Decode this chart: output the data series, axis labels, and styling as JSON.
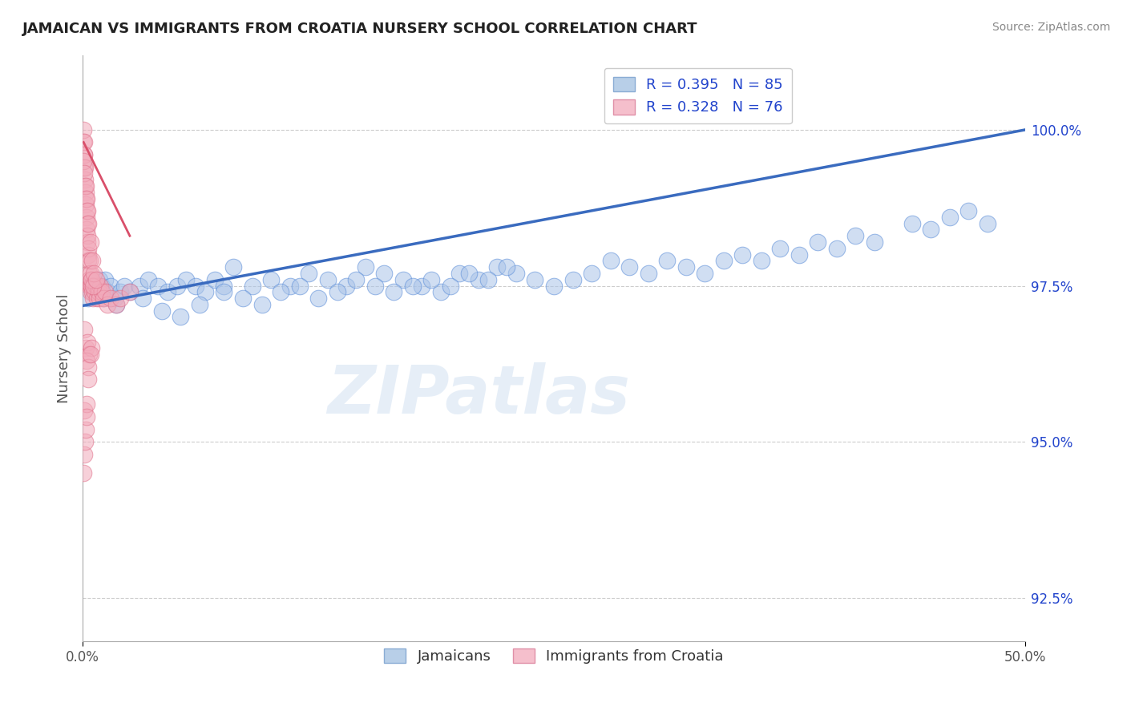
{
  "title": "JAMAICAN VS IMMIGRANTS FROM CROATIA NURSERY SCHOOL CORRELATION CHART",
  "source": "Source: ZipAtlas.com",
  "ylabel": "Nursery School",
  "xlim": [
    0.0,
    50.0
  ],
  "ylim": [
    91.8,
    101.2
  ],
  "yticks": [
    92.5,
    95.0,
    97.5,
    100.0
  ],
  "ytick_labels": [
    "92.5%",
    "95.0%",
    "97.5%",
    "100.0%"
  ],
  "blue_color": "#aac4e8",
  "blue_edge_color": "#5b8dd9",
  "blue_line_color": "#3a6bbf",
  "pink_color": "#f2aabb",
  "pink_edge_color": "#e0708a",
  "pink_line_color": "#d94f6a",
  "legend_label_jamaicans": "Jamaicans",
  "legend_label_croatia": "Immigrants from Croatia",
  "legend_text_color": "#2244cc",
  "watermark_text": "ZIPatlas",
  "background_color": "#ffffff",
  "grid_color": "#cccccc",
  "title_color": "#222222",
  "blue_scatter_x": [
    0.3,
    0.5,
    0.7,
    0.9,
    1.0,
    1.1,
    1.2,
    1.3,
    1.5,
    1.7,
    2.0,
    2.2,
    2.5,
    3.0,
    3.5,
    4.0,
    4.5,
    5.0,
    5.5,
    6.0,
    6.5,
    7.0,
    7.5,
    8.0,
    9.0,
    10.0,
    11.0,
    12.0,
    13.0,
    14.0,
    15.0,
    16.0,
    17.0,
    18.0,
    19.0,
    20.0,
    21.0,
    22.0,
    23.0,
    24.0,
    25.0,
    26.0,
    27.0,
    28.0,
    29.0,
    30.0,
    31.0,
    32.0,
    33.0,
    34.0,
    35.0,
    36.0,
    37.0,
    38.0,
    39.0,
    40.0,
    41.0,
    42.0,
    44.0,
    45.0,
    46.0,
    47.0,
    48.0,
    1.8,
    3.2,
    4.2,
    5.2,
    6.2,
    7.5,
    8.5,
    9.5,
    10.5,
    11.5,
    12.5,
    13.5,
    14.5,
    15.5,
    16.5,
    17.5,
    18.5,
    19.5,
    20.5,
    21.5,
    22.5
  ],
  "blue_scatter_y": [
    97.3,
    97.5,
    97.4,
    97.6,
    97.5,
    97.3,
    97.6,
    97.4,
    97.5,
    97.3,
    97.4,
    97.5,
    97.4,
    97.5,
    97.6,
    97.5,
    97.4,
    97.5,
    97.6,
    97.5,
    97.4,
    97.6,
    97.5,
    97.8,
    97.5,
    97.6,
    97.5,
    97.7,
    97.6,
    97.5,
    97.8,
    97.7,
    97.6,
    97.5,
    97.4,
    97.7,
    97.6,
    97.8,
    97.7,
    97.6,
    97.5,
    97.6,
    97.7,
    97.9,
    97.8,
    97.7,
    97.9,
    97.8,
    97.7,
    97.9,
    98.0,
    97.9,
    98.1,
    98.0,
    98.2,
    98.1,
    98.3,
    98.2,
    98.5,
    98.4,
    98.6,
    98.7,
    98.5,
    97.2,
    97.3,
    97.1,
    97.0,
    97.2,
    97.4,
    97.3,
    97.2,
    97.4,
    97.5,
    97.3,
    97.4,
    97.6,
    97.5,
    97.4,
    97.5,
    97.6,
    97.5,
    97.7,
    97.6,
    97.8
  ],
  "pink_scatter_x": [
    0.05,
    0.08,
    0.1,
    0.12,
    0.15,
    0.18,
    0.2,
    0.22,
    0.25,
    0.28,
    0.3,
    0.33,
    0.35,
    0.38,
    0.4,
    0.42,
    0.45,
    0.48,
    0.5,
    0.55,
    0.6,
    0.65,
    0.7,
    0.75,
    0.8,
    0.85,
    0.9,
    0.95,
    1.0,
    1.1,
    1.2,
    1.3,
    1.5,
    1.8,
    2.0,
    2.5,
    0.05,
    0.07,
    0.09,
    0.11,
    0.14,
    0.17,
    0.19,
    0.23,
    0.27,
    0.31,
    0.36,
    0.43,
    0.47,
    0.53,
    0.05,
    0.1,
    0.15,
    0.2,
    0.25,
    0.3,
    0.4,
    0.5,
    0.6,
    0.7,
    0.1,
    0.15,
    0.25,
    0.35,
    0.45,
    0.2,
    0.3,
    0.4,
    0.1,
    0.2,
    0.3,
    0.05,
    0.08,
    0.12,
    0.18,
    0.22
  ],
  "pink_scatter_y": [
    99.8,
    99.6,
    99.4,
    99.2,
    99.0,
    98.8,
    98.6,
    98.4,
    98.2,
    98.0,
    97.9,
    97.7,
    97.6,
    97.5,
    97.5,
    97.4,
    97.6,
    97.5,
    97.4,
    97.3,
    97.5,
    97.4,
    97.5,
    97.3,
    97.5,
    97.4,
    97.3,
    97.5,
    97.4,
    97.3,
    97.4,
    97.2,
    97.3,
    97.2,
    97.3,
    97.4,
    100.0,
    99.8,
    99.6,
    99.4,
    99.1,
    98.9,
    98.7,
    98.5,
    98.3,
    98.1,
    97.9,
    97.7,
    97.6,
    97.5,
    99.5,
    99.3,
    99.1,
    98.9,
    98.7,
    98.5,
    98.2,
    97.9,
    97.7,
    97.6,
    96.8,
    96.5,
    96.6,
    96.4,
    96.5,
    96.3,
    96.2,
    96.4,
    95.5,
    95.6,
    96.0,
    94.5,
    94.8,
    95.0,
    95.2,
    95.4
  ],
  "blue_line_x0": 0.0,
  "blue_line_x1": 50.0,
  "blue_line_y0": 97.18,
  "blue_line_y1": 100.0,
  "pink_line_x0": 0.05,
  "pink_line_x1": 2.5,
  "pink_line_y0": 99.8,
  "pink_line_y1": 98.3
}
